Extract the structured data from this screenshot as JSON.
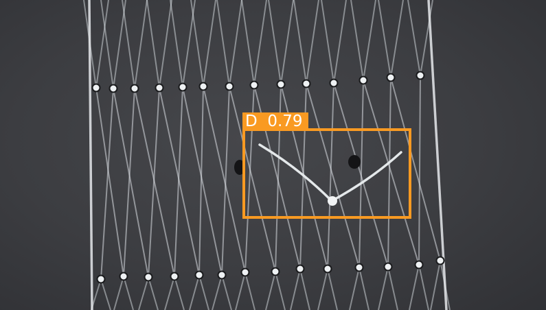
{
  "detection": {
    "class_label": "D",
    "confidence": "0.79",
    "label_text": "D  0.79",
    "box_color": "#f99a22",
    "label_text_color": "#ffffff"
  },
  "scene": {
    "background_color": "#3c3d41",
    "wire_color": "#d8dde2"
  }
}
